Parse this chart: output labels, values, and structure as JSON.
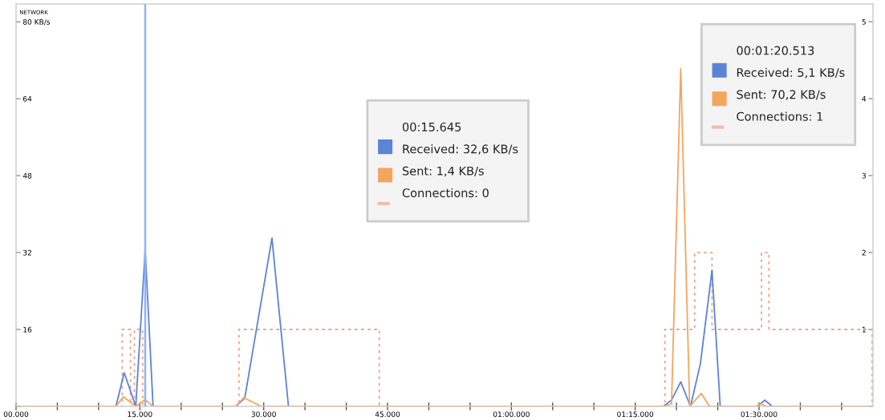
{
  "chart_data": {
    "type": "line",
    "title": "NETWORK",
    "legend": false,
    "grid": false,
    "marker": "none",
    "xlim": [
      0,
      103800
    ],
    "ylim": [
      0,
      83.7
    ],
    "y2lim": [
      0,
      5.23
    ],
    "xticks": [
      {
        "value": 0,
        "label": "00.000"
      },
      {
        "value": 5000,
        "label": null
      },
      {
        "value": 10000,
        "label": null
      },
      {
        "value": 15000,
        "label": "15.000"
      },
      {
        "value": 20000,
        "label": null
      },
      {
        "value": 25000,
        "label": null
      },
      {
        "value": 30000,
        "label": "30.000"
      },
      {
        "value": 35000,
        "label": null
      },
      {
        "value": 40000,
        "label": null
      },
      {
        "value": 45000,
        "label": "45.000"
      },
      {
        "value": 50000,
        "label": null
      },
      {
        "value": 55000,
        "label": null
      },
      {
        "value": 60000,
        "label": "01:00.000"
      },
      {
        "value": 65000,
        "label": null
      },
      {
        "value": 70000,
        "label": null
      },
      {
        "value": 75000,
        "label": "01:15.000"
      },
      {
        "value": 80000,
        "label": null
      },
      {
        "value": 85000,
        "label": null
      },
      {
        "value": 90000,
        "label": "01:30.000"
      },
      {
        "value": 95000,
        "label": null
      },
      {
        "value": 100000,
        "label": null
      }
    ],
    "yticks": [
      {
        "value": 0,
        "label": null
      },
      16,
      32,
      48,
      64,
      {
        "value": 80,
        "label": "80 KB/s"
      }
    ],
    "y2ticks": [
      {
        "value": 0,
        "label": null
      },
      1,
      2,
      3,
      4,
      5
    ],
    "series": [
      {
        "color": "#5b84d6",
        "line_style": "solid",
        "x": [
          0,
          12100,
          13100,
          14500,
          15645,
          16600,
          26600,
          27700,
          31000,
          33000,
          78400,
          79400,
          80513,
          81700,
          82900,
          84300,
          85300,
          89800,
          90700,
          91600,
          103800
        ],
        "values": [
          0,
          0,
          7.0,
          0,
          32.6,
          0,
          0,
          1.7,
          35,
          0,
          0,
          1.3,
          5.1,
          0,
          8.9,
          28.3,
          0,
          0,
          1.3,
          0,
          0
        ]
      },
      {
        "color": "#f4a55e",
        "line_style": "solid",
        "x": [
          0,
          12100,
          13000,
          14500,
          15645,
          16600,
          26600,
          27600,
          29700,
          78400,
          79400,
          80513,
          81600,
          83000,
          84000,
          89600,
          90200,
          90900,
          103800
        ],
        "values": [
          0,
          0,
          2.0,
          0,
          1.4,
          0,
          0,
          1.8,
          0,
          0,
          0.5,
          70.2,
          0,
          2.7,
          0,
          0,
          0.5,
          0,
          0
        ]
      },
      {
        "type": "step",
        "axis": "y2",
        "color": "#f0a48c",
        "line_style": "dotted",
        "x": [
          0,
          12860,
          13860,
          14330,
          15330,
          27000,
          44000,
          78600,
          82200,
          84300,
          90300,
          91200,
          103700,
          103800
        ],
        "values": [
          0,
          1,
          0,
          1,
          0,
          1,
          0,
          1,
          2,
          1,
          2,
          1,
          0,
          0
        ]
      }
    ],
    "ref_lines": [
      {
        "axis": "x",
        "value": 15645,
        "color": "#8fb3f5",
        "line_style": "solid"
      }
    ],
    "annotations": [
      "00:15.645\nReceived: 32,6 KB/s\nSent: 1,4 KB/s\nConnections: 0",
      "00:01:20.513\nReceived: 5,1 KB/s\nSent: 70,2 KB/s\nConnections: 1"
    ]
  }
}
